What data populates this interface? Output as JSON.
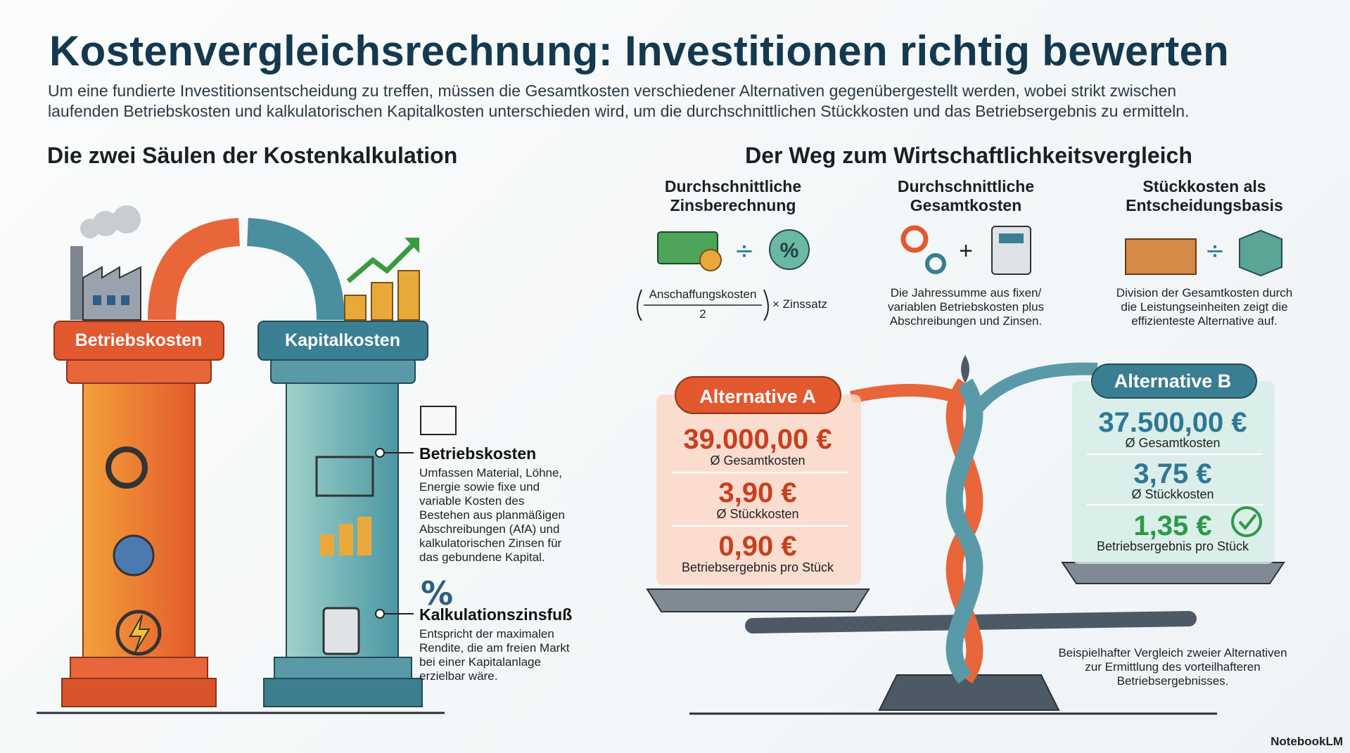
{
  "header": {
    "title": "Kostenvergleichsrechnung: Investitionen richtig bewerten",
    "subtitle": [
      "Um eine fundierte Investitionsentscheidung zu treffen, müssen die Gesamtkosten verschiedener Alternativen gegenübergestellt werden, wobei strikt zwischen",
      "laufenden Betriebskosten und kalkulatorischen Kapitalkosten unterschieden wird, um die durchschnittlichen Stückkosten und das Betriebsergebnis zu ermitteln."
    ]
  },
  "left": {
    "heading": "Die zwei Säulen der Kostenkalkulation",
    "pillars": [
      "Betriebskosten",
      "Kapitalkosten"
    ],
    "notes": [
      {
        "title": "Betriebskosten",
        "lines": [
          "Umfassen Material, Löhne,",
          "Energie sowie fixe und",
          "variable Kosten des",
          "Bestehen aus planmäßigen",
          "Abschreibungen (AfA) und",
          "kalkulatorischen Zinsen für",
          "das gebundene Kapital."
        ]
      },
      {
        "title": "Kalkulationszinsfuß",
        "lines": [
          "Entspricht der maximalen",
          "Rendite, die am freien Markt",
          "bei einer Kapitalanlage",
          "erzielbar wäre."
        ]
      }
    ]
  },
  "right": {
    "heading": "Der Weg zum Wirtschaftlichkeitsvergleich",
    "steps": [
      {
        "title": [
          "Durchschnittliche",
          "Zinsberechnung"
        ],
        "formula": {
          "numerator": "Anschaffungskosten",
          "denominator": "2",
          "factor": "× Zinssatz"
        }
      },
      {
        "title": [
          "Durchschnittliche",
          "Gesamtkosten"
        ],
        "lines": [
          "Die Jahressumme aus fixen/",
          "variablen Betriebskosten plus",
          "Abschreibungen und Zinsen."
        ]
      },
      {
        "title": [
          "Stückkosten als",
          "Entscheidungsbasis"
        ],
        "lines": [
          "Division der Gesamtkosten durch",
          "die Leistungseinheiten zeigt die",
          "effizienteste Alternative auf."
        ]
      }
    ],
    "alternatives": [
      {
        "name": "Alternative A",
        "metrics": [
          {
            "value": "39.000,00 €",
            "label": "Ø Gesamtkosten"
          },
          {
            "value": "3,90 €",
            "label": "Ø Stückkosten"
          },
          {
            "value": "0,90 €",
            "label": "Betriebsergebnis pro Stück"
          }
        ]
      },
      {
        "name": "Alternative B",
        "metrics": [
          {
            "value": "37.500,00 €",
            "label": "Ø Gesamtkosten"
          },
          {
            "value": "3,75 €",
            "label": "Ø Stückkosten"
          },
          {
            "value": "1,35 €",
            "label": "Betriebsergebnis pro Stück"
          }
        ]
      }
    ],
    "caption": [
      "Beispielhafter Vergleich zweier Alternativen",
      "zur Ermittlung des vorteilhafteren",
      "Betriebsergebnisses."
    ]
  },
  "footer": {
    "brand": "NotebookLM"
  }
}
